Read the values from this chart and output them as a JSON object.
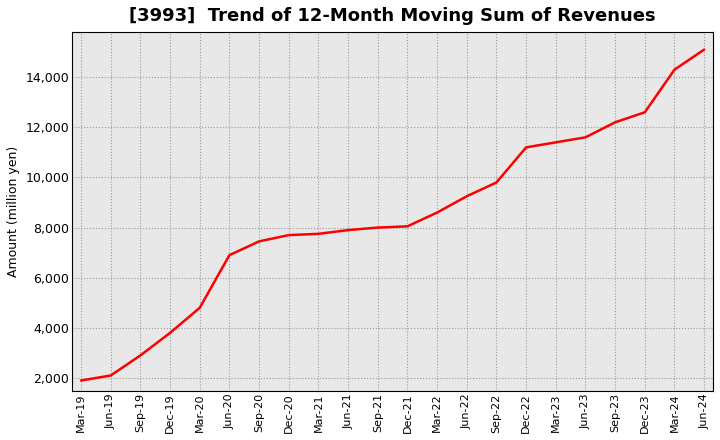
{
  "title": "[3993]  Trend of 12-Month Moving Sum of Revenues",
  "ylabel": "Amount (million yen)",
  "line_color": "#FF0000",
  "line_width": 1.8,
  "background_color": "#FFFFFF",
  "plot_bg_color": "#E8E8E8",
  "grid_color": "#AAAAAA",
  "ylim": [
    1500,
    15800
  ],
  "yticks": [
    2000,
    4000,
    6000,
    8000,
    10000,
    12000,
    14000
  ],
  "tick_labels": [
    "Mar-19",
    "Jun-19",
    "Sep-19",
    "Dec-19",
    "Mar-20",
    "Jun-20",
    "Sep-20",
    "Dec-20",
    "Mar-21",
    "Jun-21",
    "Sep-21",
    "Dec-21",
    "Mar-22",
    "Jun-22",
    "Sep-22",
    "Dec-22",
    "Mar-23",
    "Jun-23",
    "Sep-23",
    "Dec-23",
    "Mar-24",
    "Jun-24"
  ],
  "values": [
    1900,
    2100,
    2900,
    3800,
    4800,
    6900,
    7450,
    7700,
    7750,
    7900,
    8000,
    8050,
    8600,
    9250,
    9800,
    11200,
    11400,
    11600,
    12200,
    12600,
    14300,
    15100
  ],
  "title_fontsize": 13,
  "label_fontsize": 9,
  "tick_fontsize": 8
}
